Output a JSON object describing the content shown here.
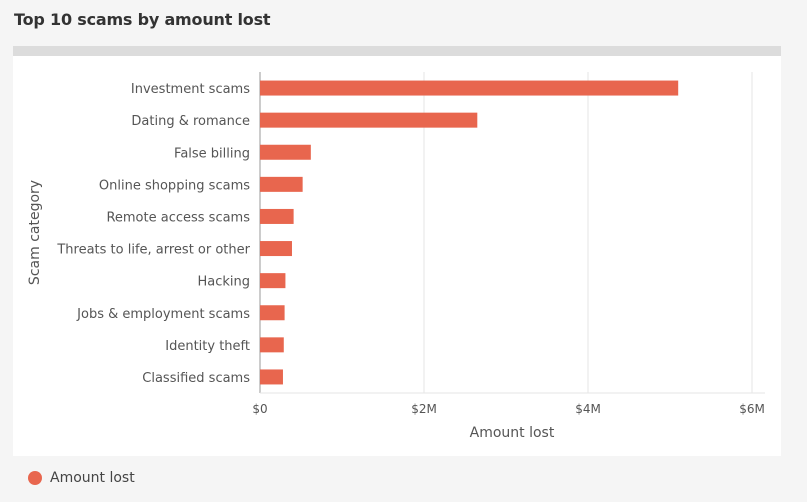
{
  "page_title": "Top 10 scams by amount lost",
  "colors": {
    "bar": "#e8664e",
    "grid": "#e6e6e6",
    "axis": "#999999",
    "text": "#555555"
  },
  "legend": {
    "label": "Amount lost",
    "color": "#e8664e"
  },
  "chart_data": {
    "type": "bar",
    "orientation": "horizontal",
    "title": "Top 10 scams by amount lost",
    "xlabel": "Amount lost",
    "ylabel": "Scam category",
    "xlim": [
      0,
      6000000
    ],
    "x_ticks": [
      {
        "value": 0,
        "label": "$0"
      },
      {
        "value": 2000000,
        "label": "$2M"
      },
      {
        "value": 4000000,
        "label": "$4M"
      },
      {
        "value": 6000000,
        "label": "$6M"
      }
    ],
    "categories": [
      "Investment scams",
      "Dating & romance",
      "False billing",
      "Online shopping scams",
      "Remote access scams",
      "Threats to life, arrest or other",
      "Hacking",
      "Jobs & employment scams",
      "Identity theft",
      "Classified scams"
    ],
    "series": [
      {
        "name": "Amount lost",
        "values": [
          5100000,
          2650000,
          620000,
          520000,
          410000,
          390000,
          310000,
          300000,
          290000,
          280000
        ]
      }
    ],
    "grid": true,
    "legend_position": "bottom-left"
  }
}
